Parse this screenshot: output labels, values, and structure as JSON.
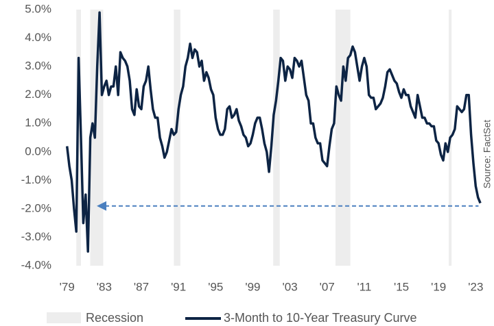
{
  "chart_data": {
    "type": "line",
    "x": [
      1979,
      1979.25,
      1979.5,
      1979.75,
      1980,
      1980.25,
      1980.5,
      1980.75,
      1981,
      1981.25,
      1981.5,
      1981.75,
      1982,
      1982.25,
      1982.5,
      1982.75,
      1983,
      1983.25,
      1983.5,
      1983.75,
      1984,
      1984.25,
      1984.5,
      1984.75,
      1985,
      1985.25,
      1985.5,
      1985.75,
      1986,
      1986.25,
      1986.5,
      1986.75,
      1987,
      1987.25,
      1987.5,
      1987.75,
      1988,
      1988.25,
      1988.5,
      1988.75,
      1989,
      1989.25,
      1989.5,
      1989.75,
      1990,
      1990.25,
      1990.5,
      1990.75,
      1991,
      1991.25,
      1991.5,
      1991.75,
      1992,
      1992.25,
      1992.5,
      1992.75,
      1993,
      1993.25,
      1993.5,
      1993.75,
      1994,
      1994.25,
      1994.5,
      1994.75,
      1995,
      1995.25,
      1995.5,
      1995.75,
      1996,
      1996.25,
      1996.5,
      1996.75,
      1997,
      1997.25,
      1997.5,
      1997.75,
      1998,
      1998.25,
      1998.5,
      1998.75,
      1999,
      1999.25,
      1999.5,
      1999.75,
      2000,
      2000.25,
      2000.5,
      2000.75,
      2001,
      2001.25,
      2001.5,
      2001.75,
      2002,
      2002.25,
      2002.5,
      2002.75,
      2003,
      2003.25,
      2003.5,
      2003.75,
      2004,
      2004.25,
      2004.5,
      2004.75,
      2005,
      2005.25,
      2005.5,
      2005.75,
      2006,
      2006.25,
      2006.5,
      2006.75,
      2007,
      2007.25,
      2007.5,
      2007.75,
      2008,
      2008.25,
      2008.5,
      2008.75,
      2009,
      2009.25,
      2009.5,
      2009.75,
      2010,
      2010.25,
      2010.5,
      2010.75,
      2011,
      2011.25,
      2011.5,
      2011.75,
      2012,
      2012.25,
      2012.5,
      2012.75,
      2013,
      2013.25,
      2013.5,
      2013.75,
      2014,
      2014.25,
      2014.5,
      2014.75,
      2015,
      2015.25,
      2015.5,
      2015.75,
      2016,
      2016.25,
      2016.5,
      2016.75,
      2017,
      2017.25,
      2017.5,
      2017.75,
      2018,
      2018.25,
      2018.5,
      2018.75,
      2019,
      2019.25,
      2019.5,
      2019.75,
      2020,
      2020.25,
      2020.5,
      2020.75,
      2021,
      2021.25,
      2021.5,
      2021.75,
      2022,
      2022.25,
      2022.5,
      2022.75,
      2023,
      2023.25,
      2023.5
    ],
    "series": [
      {
        "name": "3-Month to 10-Year Treasury Curve",
        "color": "#0d2444",
        "values": [
          0.2,
          -0.5,
          -1.0,
          -2.0,
          -2.8,
          3.3,
          0.5,
          -2.5,
          -1.5,
          -3.5,
          0.5,
          1.0,
          0.5,
          3.0,
          4.9,
          2.0,
          2.3,
          2.5,
          2.0,
          2.3,
          2.3,
          3.0,
          2.0,
          3.5,
          3.3,
          3.2,
          3.0,
          2.5,
          1.5,
          1.3,
          2.2,
          1.6,
          1.5,
          2.3,
          2.5,
          3.0,
          2.2,
          1.5,
          1.2,
          1.2,
          0.5,
          0.2,
          -0.2,
          0.0,
          0.4,
          0.8,
          0.6,
          0.7,
          1.5,
          2.0,
          2.3,
          3.0,
          3.3,
          3.8,
          3.3,
          3.6,
          3.5,
          3.0,
          3.2,
          2.5,
          2.8,
          2.6,
          2.2,
          2.0,
          1.2,
          0.8,
          0.6,
          0.6,
          0.8,
          1.5,
          1.6,
          1.2,
          1.3,
          1.5,
          1.1,
          0.9,
          0.6,
          0.5,
          0.2,
          0.3,
          0.6,
          1.0,
          1.2,
          1.2,
          0.8,
          0.3,
          0.0,
          -0.7,
          0.2,
          1.3,
          1.8,
          2.5,
          3.3,
          3.2,
          2.5,
          3.0,
          2.9,
          2.6,
          3.3,
          3.2,
          3.0,
          3.2,
          2.6,
          2.0,
          1.8,
          1.0,
          1.0,
          0.5,
          0.3,
          0.3,
          -0.3,
          -0.4,
          -0.5,
          0.2,
          0.8,
          1.0,
          2.3,
          2.0,
          1.8,
          3.0,
          2.5,
          3.3,
          3.4,
          3.7,
          3.5,
          3.0,
          2.5,
          3.0,
          3.3,
          3.0,
          2.0,
          1.9,
          1.9,
          1.5,
          1.6,
          1.7,
          1.9,
          2.3,
          2.8,
          2.9,
          2.7,
          2.5,
          2.4,
          2.1,
          1.9,
          2.2,
          2.0,
          2.0,
          1.6,
          1.4,
          1.2,
          2.0,
          1.6,
          1.2,
          1.2,
          1.0,
          1.0,
          0.9,
          0.9,
          0.4,
          0.3,
          -0.1,
          -0.3,
          0.3,
          0.0,
          0.5,
          0.6,
          0.8,
          1.6,
          1.5,
          1.4,
          1.5,
          2.0,
          2.0,
          0.6,
          -0.4,
          -1.2,
          -1.6,
          -1.8
        ]
      }
    ],
    "recessions": {
      "name": "Recession",
      "color": "#ededed",
      "periods": [
        [
          1980.0,
          1980.5
        ],
        [
          1981.5,
          1982.9
        ],
        [
          1990.5,
          1991.2
        ],
        [
          2001.2,
          2001.9
        ],
        [
          2007.9,
          2009.5
        ],
        [
          2020.1,
          2020.4
        ]
      ]
    },
    "reference_line": {
      "value": -1.9,
      "x": [
        1982.2,
        2023.3
      ],
      "color": "#4a7fbf"
    },
    "source": "Source: FactSet",
    "xlim": [
      1978.8,
      2024.6
    ],
    "xticks": [
      {
        "value": 1979,
        "label": "'79"
      },
      {
        "value": 1983,
        "label": "'83"
      },
      {
        "value": 1987,
        "label": "'87"
      },
      {
        "value": 1991,
        "label": "'91"
      },
      {
        "value": 1995,
        "label": "'95"
      },
      {
        "value": 1999,
        "label": "'99"
      },
      {
        "value": 2003,
        "label": "'03"
      },
      {
        "value": 2007,
        "label": "'07"
      },
      {
        "value": 2011,
        "label": "'11"
      },
      {
        "value": 2015,
        "label": "'15"
      },
      {
        "value": 2019,
        "label": "'19"
      },
      {
        "value": 2023,
        "label": "'23"
      }
    ],
    "ylim": [
      -4,
      5
    ],
    "yticks": [
      {
        "value": -4,
        "label": "-4.0%"
      },
      {
        "value": -3,
        "label": "-3.0%"
      },
      {
        "value": -2,
        "label": "-2.0%"
      },
      {
        "value": -1,
        "label": "-1.0%"
      },
      {
        "value": 0,
        "label": "0.0%"
      },
      {
        "value": 1,
        "label": "1.0%"
      },
      {
        "value": 2,
        "label": "2.0%"
      },
      {
        "value": 3,
        "label": "3.0%"
      },
      {
        "value": 4,
        "label": "4.0%"
      },
      {
        "value": 5,
        "label": "5.0%"
      }
    ]
  }
}
